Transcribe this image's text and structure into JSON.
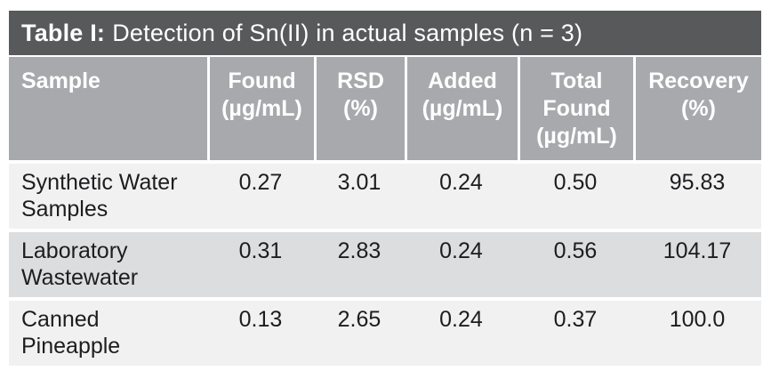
{
  "title": {
    "label": "Table I:",
    "caption": "Detection of Sn(II) in actual samples (n = 3)"
  },
  "table": {
    "columns": [
      "Sample",
      "Found\n(µg/mL)",
      "RSD\n(%)",
      "Added\n(µg/mL)",
      "Total\nFound\n(µg/mL)",
      "Recovery\n(%)"
    ],
    "rows": [
      {
        "cells": [
          "Synthetic Water\nSamples",
          "0.27",
          "3.01",
          "0.24",
          "0.50",
          "95.83"
        ]
      },
      {
        "cells": [
          "Laboratory\nWastewater",
          "0.31",
          "2.83",
          "0.24",
          "0.56",
          "104.17"
        ]
      },
      {
        "cells": [
          "Canned\nPineapple",
          "0.13",
          "2.65",
          "0.24",
          "0.37",
          "100.0"
        ]
      }
    ]
  },
  "colors": {
    "title_bar_bg": "#58595b",
    "header_bg": "#a7a9ac",
    "row_light_bg": "#f1f1f2",
    "row_dark_bg": "#dcddde",
    "header_text": "#ffffff",
    "body_text": "#1d1d1f"
  },
  "chart_data": {
    "type": "table",
    "title": "Table I: Detection of Sn(II) in actual samples (n = 3)",
    "columns": [
      "Sample",
      "Found (µg/mL)",
      "RSD (%)",
      "Added (µg/mL)",
      "Total Found (µg/mL)",
      "Recovery (%)"
    ],
    "rows": [
      [
        "Synthetic Water Samples",
        0.27,
        3.01,
        0.24,
        0.5,
        95.83
      ],
      [
        "Laboratory Wastewater",
        0.31,
        2.83,
        0.24,
        0.56,
        104.17
      ],
      [
        "Canned Pineapple",
        0.13,
        2.65,
        0.24,
        0.37,
        100.0
      ]
    ]
  }
}
